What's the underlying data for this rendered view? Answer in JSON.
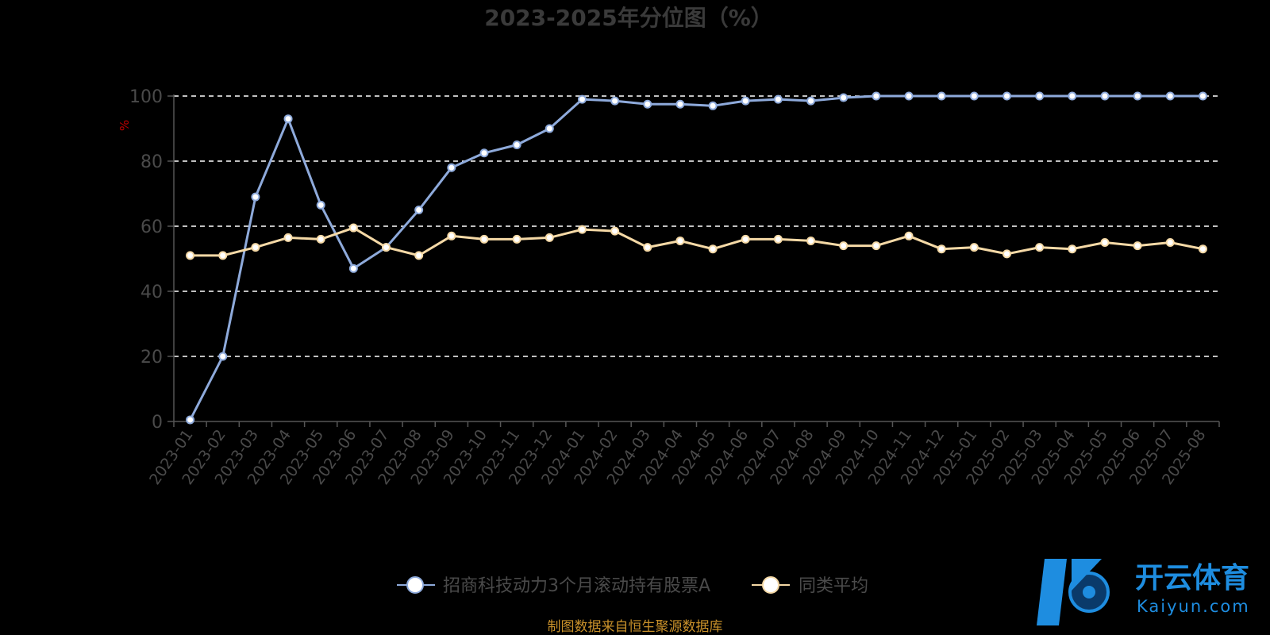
{
  "chart_data": {
    "type": "line",
    "title": "2023-2025年分位图（%）",
    "ylabel": "%",
    "xlabel": "",
    "ylim": [
      0,
      100
    ],
    "yticks": [
      0,
      20,
      40,
      60,
      80,
      100
    ],
    "grid": true,
    "legend_position": "bottom",
    "categories": [
      "2023-01",
      "2023-02",
      "2023-03",
      "2023-04",
      "2023-05",
      "2023-06",
      "2023-07",
      "2023-08",
      "2023-09",
      "2023-10",
      "2023-11",
      "2023-12",
      "2024-01",
      "2024-02",
      "2024-03",
      "2024-04",
      "2024-05",
      "2024-06",
      "2024-07",
      "2024-08",
      "2024-09",
      "2024-10",
      "2024-11",
      "2024-12",
      "2025-01",
      "2025-02",
      "2025-03",
      "2025-04",
      "2025-05",
      "2025-06",
      "2025-07",
      "2025-08"
    ],
    "series": [
      {
        "name": "招商科技动力3个月滚动持有股票A",
        "color": "#8eaadb",
        "values": [
          0.5,
          20,
          69,
          93,
          66.5,
          47,
          53.5,
          65,
          78,
          82.5,
          85,
          90,
          99,
          98.5,
          97.5,
          97.5,
          97,
          98.5,
          99,
          98.5,
          99.5,
          100,
          100,
          100,
          100,
          100,
          100,
          100,
          100,
          100,
          100,
          100
        ]
      },
      {
        "name": "同类平均",
        "color": "#f5d9a6",
        "values": [
          51,
          51,
          53.5,
          56.5,
          56,
          59.5,
          53.5,
          51,
          57,
          56,
          56,
          56.5,
          59,
          58.5,
          53.5,
          55.5,
          53,
          56,
          56,
          55.5,
          54,
          54,
          57,
          53,
          53.5,
          51.5,
          53.5,
          53,
          55,
          54,
          55,
          53
        ]
      }
    ]
  },
  "source_note": "制图数据来自恒生聚源数据库",
  "watermark": {
    "cn": "开云体育",
    "en": "Kaiyun.com"
  }
}
